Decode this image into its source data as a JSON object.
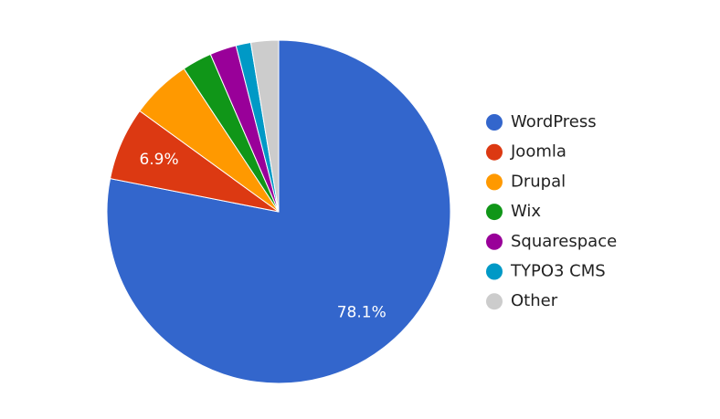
{
  "chart_data": {
    "type": "pie",
    "categories": [
      "WordPress",
      "Joomla",
      "Drupal",
      "Wix",
      "Squarespace",
      "TYPO3 CMS",
      "Other"
    ],
    "values": [
      78.1,
      6.9,
      5.7,
      2.8,
      2.5,
      1.4,
      2.6
    ],
    "value_labels": [
      "78.1%",
      "6.9%",
      null,
      null,
      null,
      null,
      null
    ],
    "colors": [
      "#3366cc",
      "#dc3912",
      "#ff9900",
      "#109618",
      "#990099",
      "#0099c6",
      "#cccccc"
    ],
    "legend": "right"
  }
}
